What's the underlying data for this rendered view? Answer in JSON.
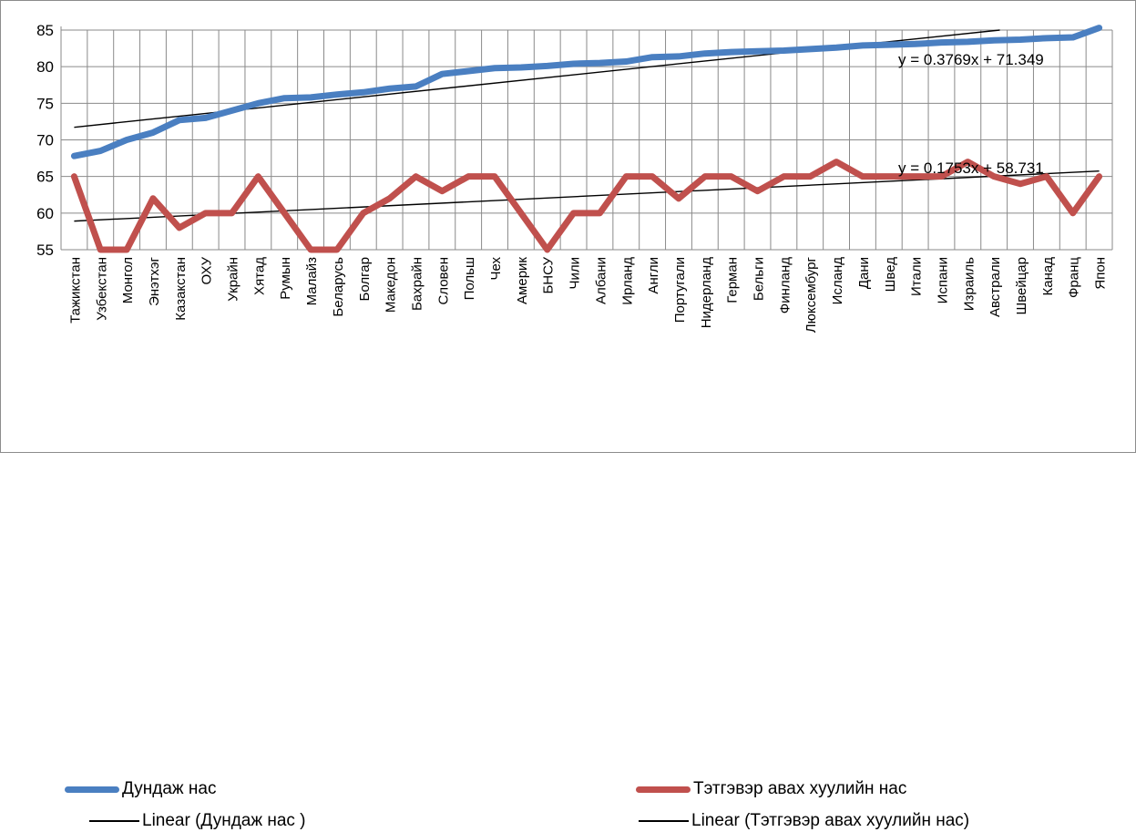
{
  "chart_data": {
    "type": "line",
    "title": "",
    "xlabel": "",
    "ylabel": "",
    "ylim": [
      55,
      85
    ],
    "yticks": [
      55,
      60,
      65,
      70,
      75,
      80,
      85
    ],
    "grid": true,
    "legend_position": "bottom",
    "categories": [
      "Тажикстан",
      "Узбекстан",
      "Монгол",
      "Энэтхэг",
      "Казакстан",
      "ОХУ",
      "Украйн",
      "Хятад",
      "Румын",
      "Малайз",
      "Беларусь",
      "Болгар",
      "Македон",
      "Бахрайн",
      "Словен",
      "Польш",
      "Чех",
      "Америк",
      "БНСУ",
      "Чили",
      "Албани",
      "Ирланд",
      "Англи",
      "Португали",
      "Нидерланд",
      "Герман",
      "Бельги",
      "Финланд",
      "Люксембург",
      "Исланд",
      "Дани",
      "Швед",
      "Итали",
      "Испани",
      "Израиль",
      "Австрали",
      "Швейцар",
      "Канад",
      "Франц",
      "Япон"
    ],
    "series": [
      {
        "name": "Дундаж нас",
        "color": "#4a7fc1",
        "values": [
          67.8,
          68.5,
          70.0,
          71.0,
          72.7,
          73.0,
          74.0,
          75.0,
          75.7,
          75.8,
          76.2,
          76.5,
          77.0,
          77.3,
          79.0,
          79.4,
          79.8,
          79.9,
          80.1,
          80.4,
          80.5,
          80.7,
          81.3,
          81.4,
          81.8,
          82.0,
          82.1,
          82.2,
          82.4,
          82.6,
          82.9,
          83.0,
          83.1,
          83.3,
          83.4,
          83.6,
          83.7,
          83.9,
          84.0,
          85.3
        ]
      },
      {
        "name": "Тэтгэвэр авах хуулийн нас",
        "color": "#c0504d",
        "values": [
          65,
          55,
          55,
          62,
          58,
          60,
          60,
          65,
          60,
          55,
          55,
          60,
          62,
          65,
          63,
          65,
          65,
          60,
          55,
          60,
          60,
          65,
          65,
          62,
          65,
          65,
          63,
          65,
          65,
          67,
          65,
          65,
          65,
          65,
          67,
          65,
          64,
          65,
          60,
          65
        ]
      }
    ],
    "trendlines": [
      {
        "name": "Linear (Дундаж нас )",
        "slope": 0.3769,
        "intercept": 71.349,
        "equation": "y = 0.3769x + 71.349",
        "color": "#000000"
      },
      {
        "name": "Linear (Тэтгэвэр авах хуулийн нас)",
        "slope": 0.1753,
        "intercept": 58.731,
        "equation": "y = 0.1753x + 58.731",
        "color": "#000000"
      }
    ]
  }
}
